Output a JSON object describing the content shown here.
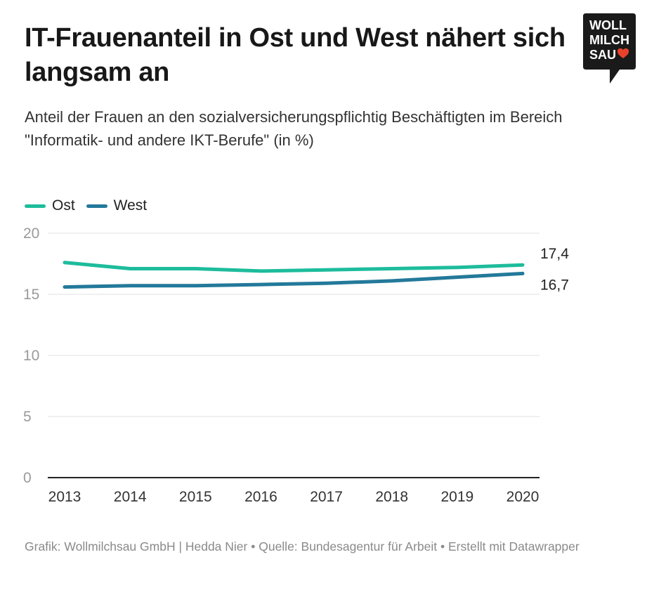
{
  "header": {
    "title": "IT-Frauenanteil in Ost und West nähert sich langsam an",
    "subtitle": "Anteil der Frauen an den sozialversicherungspflichtig Beschäftigten im Bereich \"Informatik- und andere IKT-Berufe\" (in %)"
  },
  "logo": {
    "lines": [
      "WOLL",
      "MILCH",
      "SAU"
    ],
    "icon": "heart-icon",
    "heart_color": "#e8412c",
    "bg_color": "#1a1a1a"
  },
  "legend": [
    {
      "label": "Ost",
      "color": "#1dbc9c"
    },
    {
      "label": "West",
      "color": "#23799a"
    }
  ],
  "chart_data": {
    "type": "line",
    "x": [
      "2013",
      "2014",
      "2015",
      "2016",
      "2017",
      "2018",
      "2019",
      "2020"
    ],
    "series": [
      {
        "name": "Ost",
        "color": "#1dbc9c",
        "values": [
          17.6,
          17.1,
          17.1,
          16.9,
          17.0,
          17.1,
          17.2,
          17.4
        ],
        "end_label": "17,4"
      },
      {
        "name": "West",
        "color": "#23799a",
        "values": [
          15.6,
          15.7,
          15.7,
          15.8,
          15.9,
          16.1,
          16.4,
          16.7
        ],
        "end_label": "16,7"
      }
    ],
    "yticks": [
      0,
      5,
      10,
      15,
      20
    ],
    "ylim": [
      0,
      20
    ],
    "grid": true,
    "legend_position": "top-left"
  },
  "footer": {
    "text": "Grafik: Wollmilchsau GmbH | Hedda Nier • Quelle: Bundesagentur für Arbeit • Erstellt mit Datawrapper"
  }
}
